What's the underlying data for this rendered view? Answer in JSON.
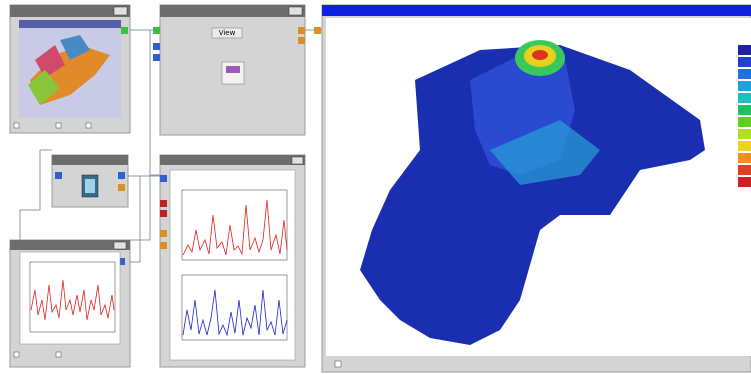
{
  "modules": [
    {
      "button": "View"
    }
  ]
}
